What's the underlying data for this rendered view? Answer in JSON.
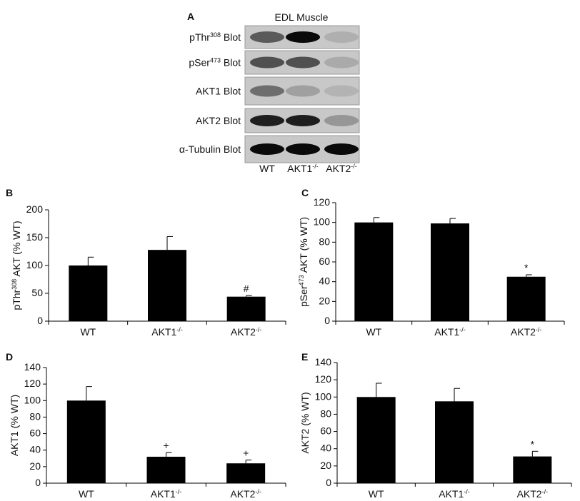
{
  "blot": {
    "letter": "A",
    "title": "EDL Muscle",
    "rows": [
      [
        {
          "text": "pThr"
        },
        {
          "text": "308",
          "sup": true
        },
        {
          "text": " Blot"
        }
      ],
      [
        {
          "text": "pSer"
        },
        {
          "text": "473",
          "sup": true
        },
        {
          "text": " Blot"
        }
      ],
      [
        {
          "text": "AKT1 Blot"
        }
      ],
      [
        {
          "text": "AKT2 Blot"
        }
      ],
      [
        {
          "text": "α-Tubulin Blot"
        }
      ]
    ],
    "lanes": [
      "WT",
      "AKT1-/-",
      "AKT2-/-"
    ]
  },
  "chart_data": [
    {
      "type": "bar",
      "letter": "B",
      "ylabel": [
        {
          "text": "pThr"
        },
        {
          "text": "308",
          "sup": true
        },
        {
          "text": " AKT (% WT)"
        }
      ],
      "categories": [
        "WT",
        "AKT1-/-",
        "AKT2-/-"
      ],
      "values": [
        100,
        128,
        44
      ],
      "errors": [
        15,
        24,
        2
      ],
      "color": "#000000",
      "ylim": [
        0,
        200
      ],
      "yticks": [
        0,
        50,
        100,
        150,
        200
      ],
      "annotations": [
        {
          "index": 2,
          "text": "#"
        }
      ]
    },
    {
      "type": "bar",
      "letter": "C",
      "ylabel": [
        {
          "text": "pSer"
        },
        {
          "text": "473",
          "sup": true
        },
        {
          "text": " AKT (% WT)"
        }
      ],
      "categories": [
        "WT",
        "AKT1-/-",
        "AKT2-/-"
      ],
      "values": [
        100,
        99,
        45
      ],
      "errors": [
        5,
        5,
        2
      ],
      "color": "#000000",
      "ylim": [
        0,
        120
      ],
      "yticks": [
        0,
        20,
        40,
        60,
        80,
        100,
        120
      ],
      "annotations": [
        {
          "index": 2,
          "text": "*"
        }
      ]
    },
    {
      "type": "bar",
      "letter": "D",
      "ylabel": [
        {
          "text": "AKT1 (% WT)"
        }
      ],
      "categories": [
        "WT",
        "AKT1-/-",
        "AKT2-/-"
      ],
      "values": [
        100,
        32,
        24
      ],
      "errors": [
        17,
        5,
        4
      ],
      "color": "#000000",
      "ylim": [
        0,
        140
      ],
      "yticks": [
        0,
        20,
        40,
        60,
        80,
        100,
        120,
        140
      ],
      "annotations": [
        {
          "index": 1,
          "text": "+"
        },
        {
          "index": 2,
          "text": "+"
        }
      ]
    },
    {
      "type": "bar",
      "letter": "E",
      "ylabel": [
        {
          "text": "AKT2 (% WT)"
        }
      ],
      "categories": [
        "WT",
        "AKT1-/-",
        "AKT2-/-"
      ],
      "values": [
        100,
        95,
        31
      ],
      "errors": [
        16,
        15,
        6
      ],
      "color": "#000000",
      "ylim": [
        0,
        140
      ],
      "yticks": [
        0,
        20,
        40,
        60,
        80,
        100,
        120,
        140
      ],
      "annotations": [
        {
          "index": 2,
          "text": "*"
        }
      ]
    }
  ]
}
